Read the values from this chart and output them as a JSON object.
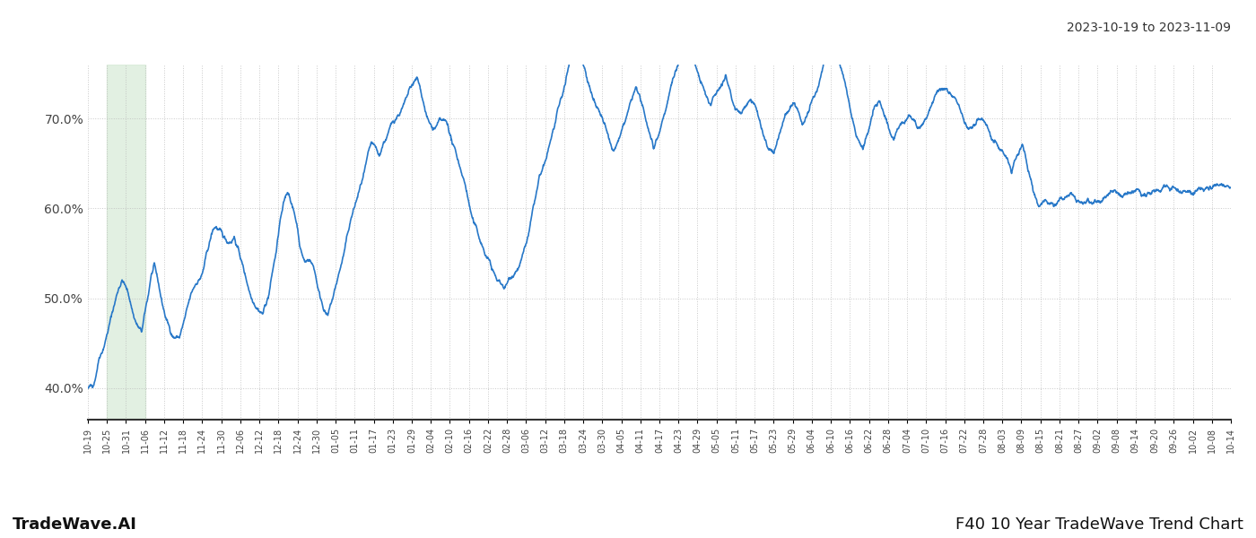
{
  "title_top_right": "2023-10-19 to 2023-11-09",
  "footer_left": "TradeWave.AI",
  "footer_right": "F40 10 Year TradeWave Trend Chart",
  "line_color": "#2878c8",
  "line_width": 1.2,
  "grid_color": "#bbbbbb",
  "background_color": "#ffffff",
  "highlight_color": "#d6ead6",
  "highlight_alpha": 0.7,
  "ylim": [
    0.365,
    0.76
  ],
  "yticks": [
    0.4,
    0.5,
    0.6,
    0.7
  ],
  "ytick_labels": [
    "40.0%",
    "50.0%",
    "60.0%",
    "70.0%"
  ],
  "xtick_labels": [
    "10-19",
    "10-25",
    "10-31",
    "11-06",
    "11-12",
    "11-18",
    "11-24",
    "11-30",
    "12-06",
    "12-12",
    "12-18",
    "12-24",
    "12-30",
    "01-05",
    "01-11",
    "01-17",
    "01-23",
    "01-29",
    "02-04",
    "02-10",
    "02-16",
    "02-22",
    "02-28",
    "03-06",
    "03-12",
    "03-18",
    "03-24",
    "03-30",
    "04-05",
    "04-11",
    "04-17",
    "04-23",
    "04-29",
    "05-05",
    "05-11",
    "05-17",
    "05-23",
    "05-29",
    "06-04",
    "06-10",
    "06-16",
    "06-22",
    "06-28",
    "07-04",
    "07-10",
    "07-16",
    "07-22",
    "07-28",
    "08-03",
    "08-09",
    "08-15",
    "08-21",
    "08-27",
    "09-02",
    "09-08",
    "09-14",
    "09-20",
    "09-26",
    "10-02",
    "10-08",
    "10-14"
  ]
}
